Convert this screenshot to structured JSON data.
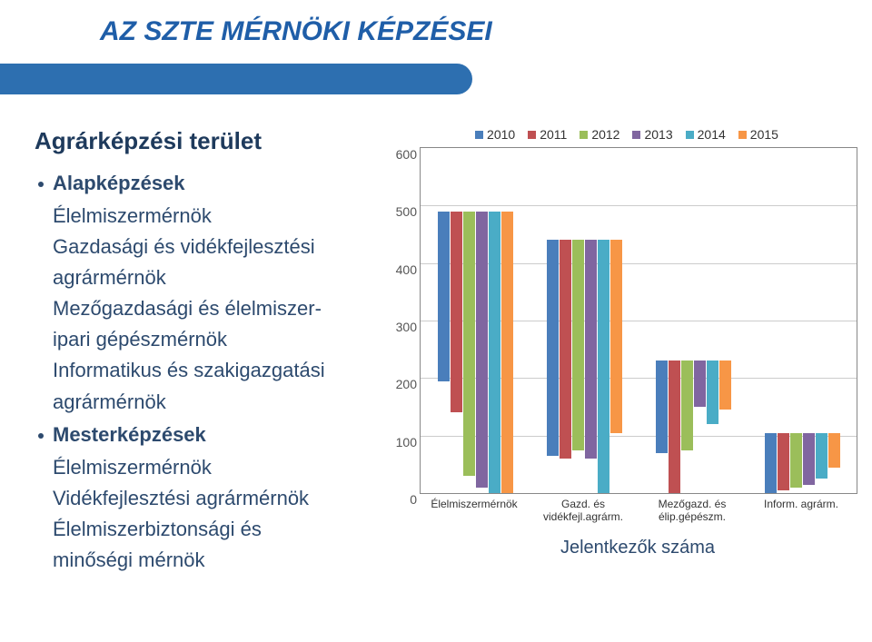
{
  "title": "AZ SZTE MÉRNÖKI KÉPZÉSEI",
  "left": {
    "subhead": "Agrárképzési terület",
    "bullet1": "Alapképzések",
    "lines1": [
      "Élelmiszermérnök",
      "Gazdasági és vidékfejlesztési",
      "agrármérnök",
      "Mezőgazdasági és élelmiszer-",
      "ipari gépészmérnök",
      "Informatikus és szakigazgatási",
      "agrármérnök"
    ],
    "bullet2": "Mesterképzések",
    "lines2": [
      "Élelmiszermérnök",
      "Vidékfejlesztési agrármérnök",
      "Élelmiszerbiztonsági és",
      "minőségi mérnök"
    ]
  },
  "chart": {
    "type": "bar",
    "subtitle": "Jelentkezők száma",
    "ylim": [
      0,
      600
    ],
    "ytick_step": 100,
    "series": [
      "2010",
      "2011",
      "2012",
      "2013",
      "2014",
      "2015"
    ],
    "series_colors": [
      "#4a7ebb",
      "#bf5052",
      "#9bbe5a",
      "#8066a0",
      "#4aacc6",
      "#f79646"
    ],
    "categories": [
      "Élelmiszermérnök",
      "Gazd. és\nvidékfejl.agrárm.",
      "Mezőgazd. és\nélip.gépészm.",
      "Inform. agrárm."
    ],
    "data": [
      [
        295,
        350,
        460,
        480,
        490,
        490
      ],
      [
        375,
        380,
        365,
        380,
        440,
        335
      ],
      [
        160,
        230,
        155,
        80,
        110,
        85
      ],
      [
        105,
        100,
        95,
        90,
        80,
        60
      ]
    ],
    "background_color": "#ffffff",
    "grid_color": "#cccccc",
    "axis_color": "#888888",
    "label_fontsize": 14
  }
}
